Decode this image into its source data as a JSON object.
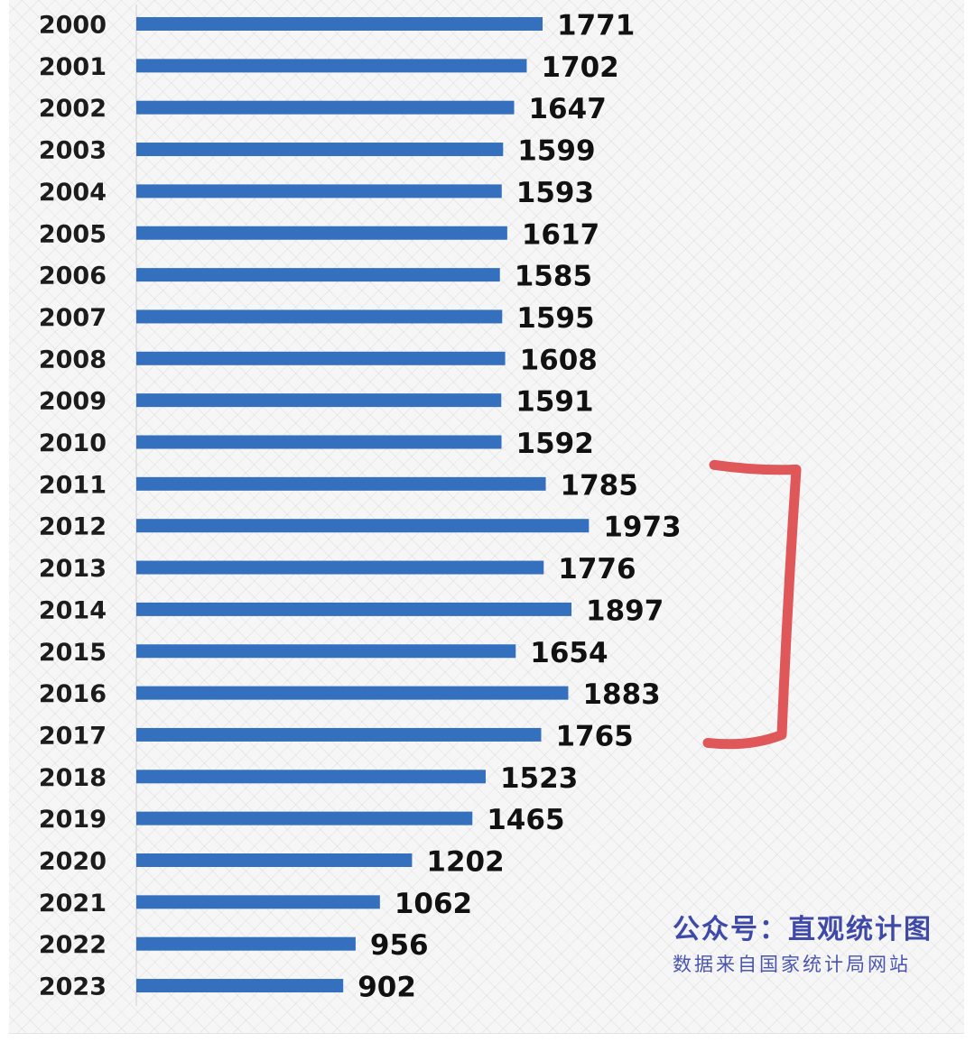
{
  "chart_data": {
    "type": "bar",
    "orientation": "horizontal",
    "categories": [
      "2000",
      "2001",
      "2002",
      "2003",
      "2004",
      "2005",
      "2006",
      "2007",
      "2008",
      "2009",
      "2010",
      "2011",
      "2012",
      "2013",
      "2014",
      "2015",
      "2016",
      "2017",
      "2018",
      "2019",
      "2020",
      "2021",
      "2022",
      "2023"
    ],
    "values": [
      1771,
      1702,
      1647,
      1599,
      1593,
      1617,
      1585,
      1595,
      1608,
      1591,
      1592,
      1785,
      1973,
      1776,
      1897,
      1654,
      1883,
      1765,
      1523,
      1465,
      1202,
      1062,
      956,
      902
    ],
    "title": "",
    "xlabel": "",
    "ylabel": "",
    "xlim": [
      0,
      2100
    ],
    "grid": false,
    "legend": "none",
    "data_labels": true,
    "highlight_bracket": [
      "2011",
      "2017"
    ],
    "colors": {
      "bar": "#3570be",
      "bracket": "#e0575a"
    }
  },
  "watermark": {
    "line1": "公众号：直观统计图",
    "line2": "数据来自国家统计局网站"
  }
}
